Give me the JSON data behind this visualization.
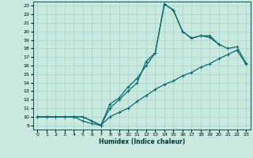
{
  "title": "",
  "xlabel": "Humidex (Indice chaleur)",
  "xlim": [
    -0.5,
    23.5
  ],
  "ylim": [
    8.5,
    23.5
  ],
  "xticks": [
    0,
    1,
    2,
    3,
    4,
    5,
    6,
    7,
    8,
    9,
    10,
    11,
    12,
    13,
    14,
    15,
    16,
    17,
    18,
    19,
    20,
    21,
    22,
    23
  ],
  "yticks": [
    9,
    10,
    11,
    12,
    13,
    14,
    15,
    16,
    17,
    18,
    19,
    20,
    21,
    22,
    23
  ],
  "bg_color": "#c8e8e0",
  "line_color": "#006868",
  "grid_color": "#b0d8d0",
  "curve1_x": [
    0,
    1,
    2,
    3,
    4,
    5,
    6,
    7,
    8,
    9,
    10,
    11,
    12,
    13,
    14,
    15,
    16,
    17,
    18,
    19,
    20
  ],
  "curve1_y": [
    10,
    10,
    10,
    10,
    10,
    10,
    9.5,
    9.0,
    11.0,
    12.0,
    13.0,
    14.0,
    16.5,
    17.5,
    23.2,
    22.5,
    20.0,
    19.2,
    19.5,
    19.5,
    18.5
  ],
  "curve2_x": [
    0,
    1,
    2,
    3,
    4,
    5,
    6,
    7,
    8,
    9,
    10,
    11,
    12,
    13,
    14,
    15,
    16,
    17,
    18,
    19,
    20,
    21,
    22,
    23
  ],
  "curve2_y": [
    10,
    10,
    10,
    10,
    10,
    9.5,
    9.2,
    9.0,
    10.0,
    10.5,
    11.0,
    11.8,
    12.5,
    13.2,
    13.8,
    14.2,
    14.8,
    15.2,
    15.8,
    16.2,
    16.8,
    17.3,
    17.8,
    16.2
  ],
  "curve3_x": [
    0,
    3,
    4,
    5,
    6,
    7,
    8,
    9,
    10,
    11,
    12,
    13,
    14,
    15,
    16,
    17,
    18,
    19,
    20,
    21,
    22,
    23
  ],
  "curve3_y": [
    10,
    10,
    10,
    10,
    9.5,
    9.0,
    11.5,
    12.2,
    13.5,
    14.5,
    16.0,
    17.5,
    23.2,
    22.5,
    20.0,
    19.2,
    19.5,
    19.3,
    18.5,
    18.0,
    18.2,
    16.3
  ]
}
